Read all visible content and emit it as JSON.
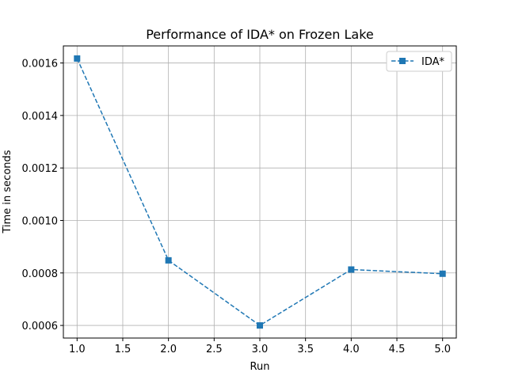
{
  "chart_data": {
    "type": "line",
    "title": "Performance of IDA* on Frozen Lake",
    "xlabel": "Run",
    "ylabel": "Time in seconds",
    "x": [
      1.0,
      2.0,
      3.0,
      4.0,
      5.0
    ],
    "series": [
      {
        "name": "IDA*",
        "values": [
          0.001617,
          0.000848,
          0.0006,
          0.000813,
          0.000797
        ],
        "color": "#1f77b4",
        "line_style": "dashed",
        "marker": "square"
      }
    ],
    "xlim": [
      0.85,
      5.15
    ],
    "ylim": [
      0.000552,
      0.001665
    ],
    "x_ticks": [
      1.0,
      1.5,
      2.0,
      2.5,
      3.0,
      3.5,
      4.0,
      4.5,
      5.0
    ],
    "x_tick_labels": [
      "1.0",
      "1.5",
      "2.0",
      "2.5",
      "3.0",
      "3.5",
      "4.0",
      "4.5",
      "5.0"
    ],
    "y_ticks": [
      0.0006,
      0.0008,
      0.001,
      0.0012,
      0.0014,
      0.0016
    ],
    "y_tick_labels": [
      "0.0006",
      "0.0008",
      "0.0010",
      "0.0012",
      "0.0014",
      "0.0016"
    ],
    "grid": true,
    "legend_position": "top-right"
  }
}
